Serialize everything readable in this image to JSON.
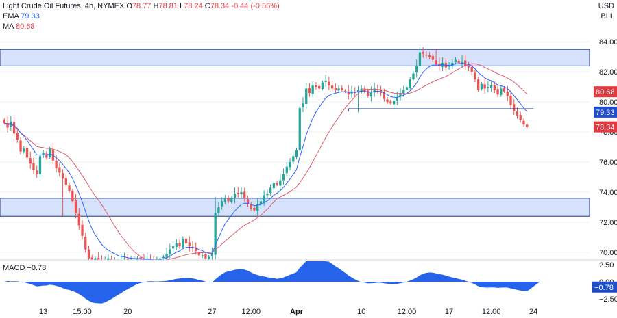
{
  "header": {
    "title": "Light Crude Oil Futures, 4h, NYMEX",
    "o_label": "O",
    "o_value": "78.77",
    "h_label": "H",
    "h_value": "78.81",
    "l_label": "L",
    "l_value": "78.24",
    "c_label": "C",
    "c_value": "78.34",
    "change": "-0.44 (-0.56%)",
    "currency": "USD",
    "unit": "BLL"
  },
  "indicators": {
    "ema_label": "EMA",
    "ema_value": "79.33",
    "ma_label": "MA",
    "ma_value": "80.68",
    "macd_label": "MACD",
    "macd_value": "−0.78"
  },
  "colors": {
    "up": "#26a69a",
    "down": "#ef5350",
    "ema": "#2962ff",
    "ma": "#e05a6a",
    "zone_fill": "#cfdcfb",
    "zone_border": "#1e3a8a",
    "macd_fill": "#2563eb",
    "ema_tag": "#1f4ec8",
    "price_tag": "#e03a3e",
    "grid": "#eef0f3"
  },
  "chart_data": {
    "type": "candlestick",
    "title": "Light Crude Oil Futures, 4h, NYMEX",
    "price_range": [
      69.5,
      84.6
    ],
    "y_ticks": [
      "84.00",
      "82.00",
      "80.00",
      "78.00",
      "76.00",
      "74.00",
      "72.00",
      "70.00"
    ],
    "y_tick_values": [
      84,
      82,
      80,
      78,
      76,
      74,
      72,
      70
    ],
    "x_ticks": [
      "13",
      "15:00",
      "20",
      "27",
      "12:00",
      "Apr",
      "10",
      "12:00",
      "17",
      "12:00",
      "24"
    ],
    "x_tick_bar_index": [
      12,
      24,
      38,
      64,
      76,
      90,
      110,
      124,
      137,
      150,
      163
    ],
    "num_bars": 166,
    "closes": [
      78.6,
      78.3,
      78.7,
      77.9,
      77.5,
      76.7,
      76.9,
      76.3,
      75.9,
      75.5,
      75.2,
      76.4,
      76.6,
      76.3,
      76.9,
      76.1,
      75.6,
      75.3,
      74.9,
      74.5,
      74.1,
      73.4,
      72.6,
      71.8,
      71.1,
      70.2,
      69.6,
      69.4,
      69.6,
      69.5,
      69.3,
      69.4,
      69.6,
      69.4,
      69.5,
      69.3,
      69.5,
      69.6,
      69.4,
      69.5,
      69.5,
      69.6,
      69.5,
      69.4,
      69.6,
      69.5,
      69.4,
      69.5,
      69.6,
      69.7,
      69.9,
      70.2,
      70.4,
      70.6,
      70.4,
      70.9,
      70.6,
      70.4,
      70.3,
      70.1,
      69.8,
      69.8,
      69.6,
      69.7,
      69.9,
      72.6,
      73.0,
      73.4,
      73.6,
      73.4,
      73.6,
      73.9,
      73.9,
      74.0,
      73.6,
      73.2,
      72.9,
      72.8,
      73.2,
      73.4,
      73.8,
      73.9,
      74.3,
      74.6,
      74.5,
      74.8,
      75.2,
      75.7,
      76.0,
      76.4,
      76.8,
      79.6,
      79.9,
      80.9,
      80.6,
      81.1,
      81.0,
      80.9,
      81.3,
      81.4,
      81.1,
      80.9,
      80.8,
      80.9,
      80.8,
      80.7,
      80.5,
      80.7,
      80.6,
      80.8,
      80.9,
      80.7,
      80.4,
      80.6,
      80.9,
      80.8,
      80.6,
      80.2,
      80.0,
      79.9,
      80.1,
      80.3,
      80.6,
      80.8,
      81.0,
      81.5,
      81.9,
      82.4,
      83.3,
      83.2,
      83.1,
      83.0,
      82.8,
      82.5,
      82.4,
      82.6,
      82.3,
      82.4,
      82.6,
      82.8,
      82.6,
      82.7,
      82.4,
      82.3,
      82.0,
      81.5,
      80.8,
      81.2,
      80.9,
      81.0,
      81.1,
      80.8,
      80.5,
      80.9,
      80.7,
      80.4,
      79.8,
      79.4,
      79.1,
      78.8,
      78.5,
      78.34
    ],
    "support_resistance_zones": [
      {
        "low": 82.4,
        "high": 83.5
      },
      {
        "low": 72.4,
        "high": 73.6
      }
    ],
    "breakdown_line": {
      "price": 79.55,
      "from_bar": 106,
      "to_bar": 163
    },
    "ema_period": 9,
    "ma_period": 20,
    "macd_axis": [
      "2.50",
      "0.00",
      "−2.50"
    ],
    "macd_axis_values": [
      2.5,
      0,
      -2.5
    ],
    "macd_range": [
      -3.4,
      3.0
    ],
    "current_price": "78.34",
    "ema_value": "79.33",
    "ma_value": "80.68",
    "macd_value": "−0.78"
  }
}
